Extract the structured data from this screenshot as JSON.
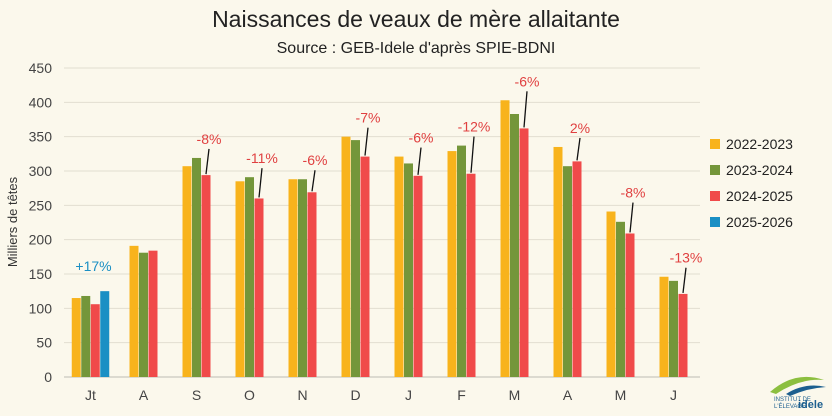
{
  "chart_data": {
    "type": "bar",
    "title": "Naissances de veaux de mère allaitante",
    "subtitle": "Source : GEB-Idele d'après SPIE-BDNI",
    "ylabel": "Milliers de têtes",
    "ylim": [
      0,
      450
    ],
    "yticks": [
      0,
      50,
      100,
      150,
      200,
      250,
      300,
      350,
      400,
      450
    ],
    "grid": true,
    "legend": "right",
    "categories": [
      "Jt",
      "A",
      "S",
      "O",
      "N",
      "D",
      "J",
      "F",
      "M",
      "A",
      "M",
      "J"
    ],
    "series": [
      {
        "name": "2022-2023",
        "color": "#f8b31c",
        "values": [
          115,
          191,
          307,
          285,
          288,
          350,
          321,
          329,
          403,
          335,
          241,
          146
        ]
      },
      {
        "name": "2023-2024",
        "color": "#74963a",
        "values": [
          118,
          181,
          319,
          291,
          288,
          345,
          311,
          337,
          383,
          307,
          226,
          140
        ]
      },
      {
        "name": "2024-2025",
        "color": "#f04a4a",
        "values": [
          106,
          184,
          294,
          260,
          269,
          321,
          293,
          296,
          362,
          314,
          209,
          121
        ]
      },
      {
        "name": "2025-2026",
        "color": "#1a8fc4",
        "values": [
          125,
          null,
          null,
          null,
          null,
          null,
          null,
          null,
          null,
          null,
          null,
          null
        ]
      }
    ],
    "annotations": [
      {
        "category": 0,
        "text": "+17%",
        "color": "#1a8fc4"
      },
      {
        "category": 2,
        "text": "-8%",
        "color": "#e04040"
      },
      {
        "category": 3,
        "text": "-11%",
        "color": "#e04040"
      },
      {
        "category": 4,
        "text": "-6%",
        "color": "#e04040"
      },
      {
        "category": 5,
        "text": "-7%",
        "color": "#e04040"
      },
      {
        "category": 6,
        "text": "-6%",
        "color": "#e04040"
      },
      {
        "category": 7,
        "text": "-12%",
        "color": "#e04040"
      },
      {
        "category": 8,
        "text": "-6%",
        "color": "#e04040"
      },
      {
        "category": 9,
        "text": "2%",
        "color": "#e04040"
      },
      {
        "category": 10,
        "text": "-8%",
        "color": "#e04040"
      },
      {
        "category": 11,
        "text": "-13%",
        "color": "#e04040"
      }
    ]
  },
  "logo": {
    "line1": "INSTITUT DE",
    "line2": "L'ÉLEVAGE",
    "brand": "idele"
  }
}
